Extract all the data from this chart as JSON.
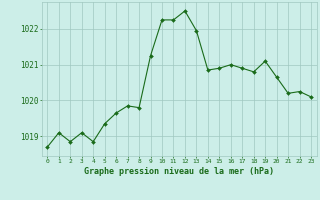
{
  "x": [
    0,
    1,
    2,
    3,
    4,
    5,
    6,
    7,
    8,
    9,
    10,
    11,
    12,
    13,
    14,
    15,
    16,
    17,
    18,
    19,
    20,
    21,
    22,
    23
  ],
  "y": [
    1018.7,
    1019.1,
    1018.85,
    1019.1,
    1018.85,
    1019.35,
    1019.65,
    1019.85,
    1019.8,
    1021.25,
    1022.25,
    1022.25,
    1022.5,
    1021.95,
    1020.85,
    1020.9,
    1021.0,
    1020.9,
    1020.8,
    1021.1,
    1020.65,
    1020.2,
    1020.25,
    1020.1
  ],
  "line_color": "#1a6b1a",
  "marker": "D",
  "marker_size": 2,
  "bg_color": "#cceee8",
  "grid_color": "#a0c8c0",
  "xlabel": "Graphe pression niveau de la mer (hPa)",
  "xlabel_color": "#1a6b1a",
  "tick_color": "#1a6b1a",
  "yticks": [
    1019,
    1020,
    1021,
    1022
  ],
  "ylim": [
    1018.45,
    1022.75
  ],
  "xlim": [
    -0.5,
    23.5
  ],
  "xticks": [
    0,
    1,
    2,
    3,
    4,
    5,
    6,
    7,
    8,
    9,
    10,
    11,
    12,
    13,
    14,
    15,
    16,
    17,
    18,
    19,
    20,
    21,
    22,
    23
  ]
}
